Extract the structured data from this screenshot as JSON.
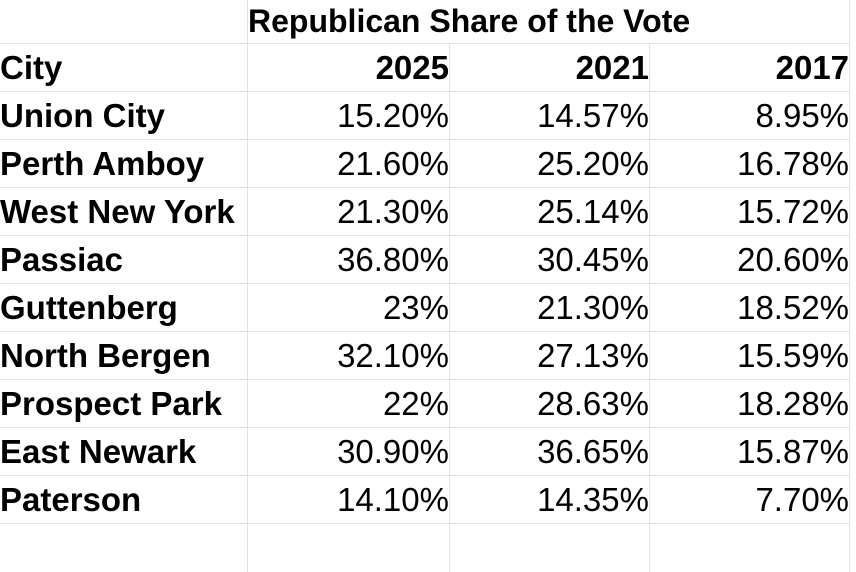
{
  "title": "Republican Share of the Vote",
  "colors": {
    "gridline": "#e1e1e1",
    "background": "#ffffff",
    "text": "#000000"
  },
  "chart_data": {
    "type": "table",
    "title": "Republican Share of the Vote",
    "columns": [
      "City",
      "2025",
      "2021",
      "2017"
    ],
    "rows": [
      [
        "Union City",
        "15.20%",
        "14.57%",
        "8.95%"
      ],
      [
        "Perth Amboy",
        "21.60%",
        "25.20%",
        "16.78%"
      ],
      [
        "West New York",
        "21.30%",
        "25.14%",
        "15.72%"
      ],
      [
        "Passiac",
        "36.80%",
        "30.45%",
        "20.60%"
      ],
      [
        "Guttenberg",
        "23%",
        "21.30%",
        "18.52%"
      ],
      [
        "North Bergen",
        "32.10%",
        "27.13%",
        "15.59%"
      ],
      [
        "Prospect Park",
        "22%",
        "28.63%",
        "18.28%"
      ],
      [
        "East Newark",
        "30.90%",
        "36.65%",
        "15.87%"
      ],
      [
        "Paterson",
        "14.10%",
        "14.35%",
        "7.70%"
      ]
    ],
    "layout": {
      "title_merged_across": [
        "2025",
        "2021",
        "2017"
      ],
      "grid": true,
      "value_alignment": "right",
      "city_alignment": "left"
    }
  }
}
